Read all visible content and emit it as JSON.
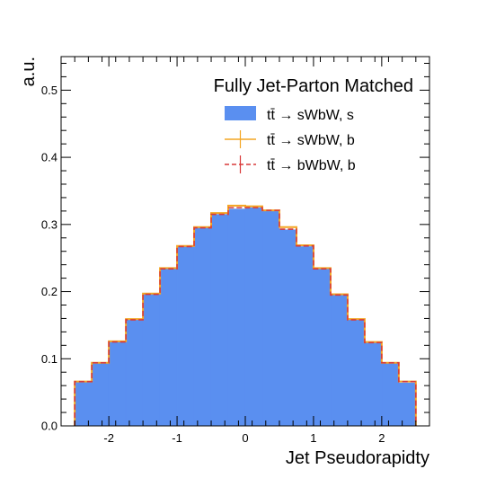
{
  "chart_data": {
    "type": "histogram",
    "title": "",
    "xlabel": "Jet Pseudorapidty",
    "ylabel": "a.u.",
    "xlim": [
      -2.7,
      2.7
    ],
    "ylim": [
      0,
      0.55
    ],
    "xticks": [
      -2,
      -1,
      0,
      1,
      2
    ],
    "xtick_labels": [
      "-2",
      "-1",
      "0",
      "1",
      "2"
    ],
    "yticks": [
      0,
      0.1,
      0.2,
      0.3,
      0.4,
      0.5
    ],
    "ytick_labels": [
      "0.0",
      "0.1",
      "0.2",
      "0.3",
      "0.4",
      "0.5"
    ],
    "bin_edges": [
      -2.5,
      -2.25,
      -2.0,
      -1.75,
      -1.5,
      -1.25,
      -1.0,
      -0.75,
      -0.5,
      -0.25,
      0.0,
      0.25,
      0.5,
      0.75,
      1.0,
      1.25,
      1.5,
      1.75,
      2.0,
      2.25,
      2.5
    ],
    "legend": {
      "title": "Fully Jet-Parton Matched",
      "placement": "top-right"
    },
    "series": [
      {
        "name": "tt̄ → sWbW, s",
        "style": "filled",
        "color": "#5a8ff0",
        "values": [
          0.065,
          0.093,
          0.125,
          0.158,
          0.196,
          0.234,
          0.267,
          0.295,
          0.315,
          0.323,
          0.325,
          0.32,
          0.292,
          0.267,
          0.234,
          0.195,
          0.158,
          0.124,
          0.093,
          0.064
        ]
      },
      {
        "name": "tt̄ → sWbW, b",
        "style": "line-solid",
        "color": "#f4a623",
        "values": [
          0.066,
          0.094,
          0.126,
          0.159,
          0.197,
          0.235,
          0.268,
          0.296,
          0.317,
          0.328,
          0.327,
          0.321,
          0.296,
          0.269,
          0.235,
          0.196,
          0.159,
          0.125,
          0.094,
          0.066
        ]
      },
      {
        "name": "tt̄ → bWbW, b",
        "style": "line-dashed",
        "color": "#d93a3a",
        "values": [
          0.066,
          0.094,
          0.125,
          0.158,
          0.196,
          0.234,
          0.267,
          0.295,
          0.315,
          0.325,
          0.325,
          0.321,
          0.293,
          0.268,
          0.234,
          0.195,
          0.158,
          0.124,
          0.094,
          0.066
        ]
      }
    ]
  }
}
